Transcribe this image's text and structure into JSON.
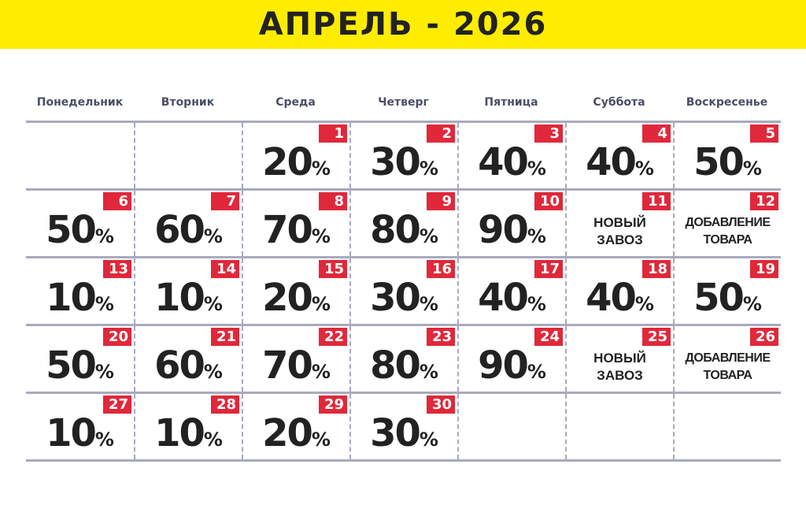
{
  "title": "АПРЕЛЬ - 2026",
  "weekdays": [
    "Понедельник",
    "Вторник",
    "Среда",
    "Четверг",
    "Пятница",
    "Суббота",
    "Воскресенье"
  ],
  "percent_sign": "%",
  "colors": {
    "banner": "#ffed00",
    "badge": "#e0283a",
    "text": "#222222",
    "lines": "#a9aabd"
  },
  "weeks": [
    [
      null,
      null,
      {
        "day": "1",
        "value": "20"
      },
      {
        "day": "2",
        "value": "30"
      },
      {
        "day": "3",
        "value": "40"
      },
      {
        "day": "4",
        "value": "40"
      },
      {
        "day": "5",
        "value": "50"
      }
    ],
    [
      {
        "day": "6",
        "value": "50"
      },
      {
        "day": "7",
        "value": "60"
      },
      {
        "day": "8",
        "value": "70"
      },
      {
        "day": "9",
        "value": "80"
      },
      {
        "day": "10",
        "value": "90"
      },
      {
        "day": "11",
        "note": [
          "НОВЫЙ",
          "ЗАВОЗ"
        ]
      },
      {
        "day": "12",
        "note": [
          "ДОБАВЛЕНИЕ",
          "ТОВАРА"
        ]
      }
    ],
    [
      {
        "day": "13",
        "value": "10"
      },
      {
        "day": "14",
        "value": "10"
      },
      {
        "day": "15",
        "value": "20"
      },
      {
        "day": "16",
        "value": "30"
      },
      {
        "day": "17",
        "value": "40"
      },
      {
        "day": "18",
        "value": "40"
      },
      {
        "day": "19",
        "value": "50"
      }
    ],
    [
      {
        "day": "20",
        "value": "50"
      },
      {
        "day": "21",
        "value": "60"
      },
      {
        "day": "22",
        "value": "70"
      },
      {
        "day": "23",
        "value": "80"
      },
      {
        "day": "24",
        "value": "90"
      },
      {
        "day": "25",
        "note": [
          "НОВЫЙ",
          "ЗАВОЗ"
        ]
      },
      {
        "day": "26",
        "note": [
          "ДОБАВЛЕНИЕ",
          "ТОВАРА"
        ]
      }
    ],
    [
      {
        "day": "27",
        "value": "10"
      },
      {
        "day": "28",
        "value": "10"
      },
      {
        "day": "29",
        "value": "20"
      },
      {
        "day": "30",
        "value": "30"
      },
      null,
      null,
      null
    ]
  ]
}
